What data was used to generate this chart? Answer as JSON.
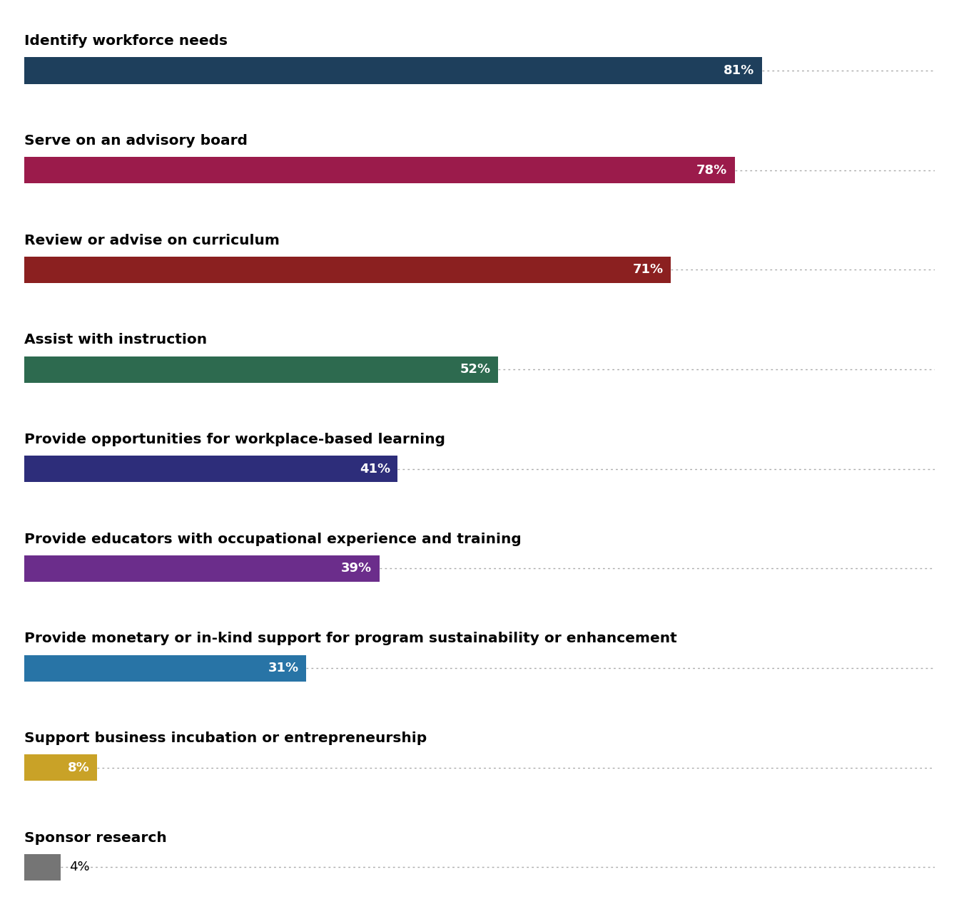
{
  "categories": [
    "Identify workforce needs",
    "Serve on an advisory board",
    "Review or advise on curriculum",
    "Assist with instruction",
    "Provide opportunities for workplace-based learning",
    "Provide educators with occupational experience and training",
    "Provide monetary or in-kind support for program sustainability or enhancement",
    "Support business incubation or entrepreneurship",
    "Sponsor research"
  ],
  "values": [
    81,
    78,
    71,
    52,
    41,
    39,
    31,
    8,
    4
  ],
  "colors": [
    "#1e3f5c",
    "#9b1b4b",
    "#8b2020",
    "#2d6a4f",
    "#2d2d7a",
    "#6b2d8b",
    "#2874a6",
    "#c9a227",
    "#757575"
  ],
  "label_colors": [
    "white",
    "white",
    "white",
    "white",
    "white",
    "white",
    "white",
    "white",
    "black"
  ],
  "label_inside": [
    true,
    true,
    true,
    true,
    true,
    true,
    true,
    true,
    false
  ],
  "xlim": [
    0,
    100
  ],
  "bar_height": 0.55,
  "background_color": "#ffffff",
  "label_fontsize": 13,
  "category_fontsize": 14.5,
  "bold_category": true
}
